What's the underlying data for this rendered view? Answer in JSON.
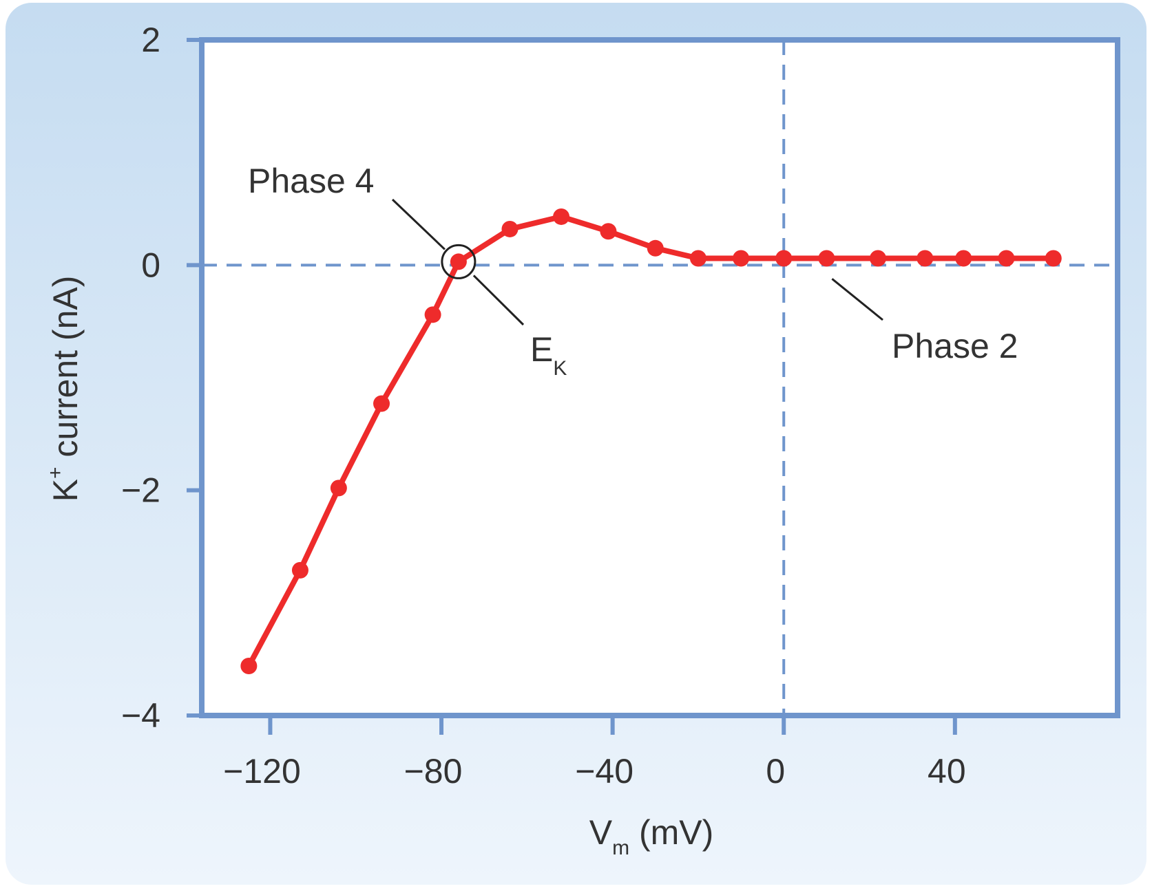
{
  "colors": {
    "background_top": "#c5dcf1",
    "background_bottom": "#eef5fc",
    "frame": "#6f95cc",
    "zero_lines": "#6f95cc",
    "series": "#ee2b2b",
    "text": "#333333",
    "annotation": "#222222"
  },
  "chart_data": {
    "type": "line",
    "title": "",
    "xlabel": {
      "main": "V",
      "sub": "m",
      "rest": " (mV)"
    },
    "ylabel": {
      "main": "K",
      "sup": "+",
      "rest": " current (nA)"
    },
    "xlim": [
      -136,
      78
    ],
    "ylim": [
      -4,
      2
    ],
    "xticks": [
      -120,
      -80,
      -40,
      0,
      40
    ],
    "xtick_labels": [
      "−120",
      "−80",
      "−40",
      "0",
      "40"
    ],
    "yticks": [
      2,
      0,
      -2,
      -4
    ],
    "ytick_labels": [
      "2",
      "0",
      "−2",
      "−4"
    ],
    "grid": false,
    "reference_lines": {
      "x": 0,
      "y": 0,
      "style": "dashed"
    },
    "series": [
      {
        "name": "K+ current",
        "x": [
          -125,
          -113,
          -104,
          -94,
          -82,
          -76,
          -64,
          -52,
          -41,
          -30,
          -20,
          -10,
          0,
          10,
          22,
          33,
          42,
          52,
          63
        ],
        "y": [
          -3.56,
          -2.71,
          -1.98,
          -1.23,
          -0.44,
          0.03,
          0.32,
          0.43,
          0.3,
          0.15,
          0.06,
          0.06,
          0.06,
          0.06,
          0.06,
          0.06,
          0.06,
          0.06,
          0.06
        ]
      }
    ],
    "annotations": [
      {
        "id": "phase4",
        "text": "Phase 4",
        "point_x": -76,
        "point_y": 0.03
      },
      {
        "id": "ek",
        "text": "E",
        "sub": "K",
        "point_x": -76,
        "point_y": 0.03
      },
      {
        "id": "phase2",
        "text": "Phase 2",
        "point_x": 10,
        "point_y": -0.05
      }
    ],
    "marked_point": {
      "label": "E_K",
      "x": -76,
      "y": 0.03
    }
  }
}
